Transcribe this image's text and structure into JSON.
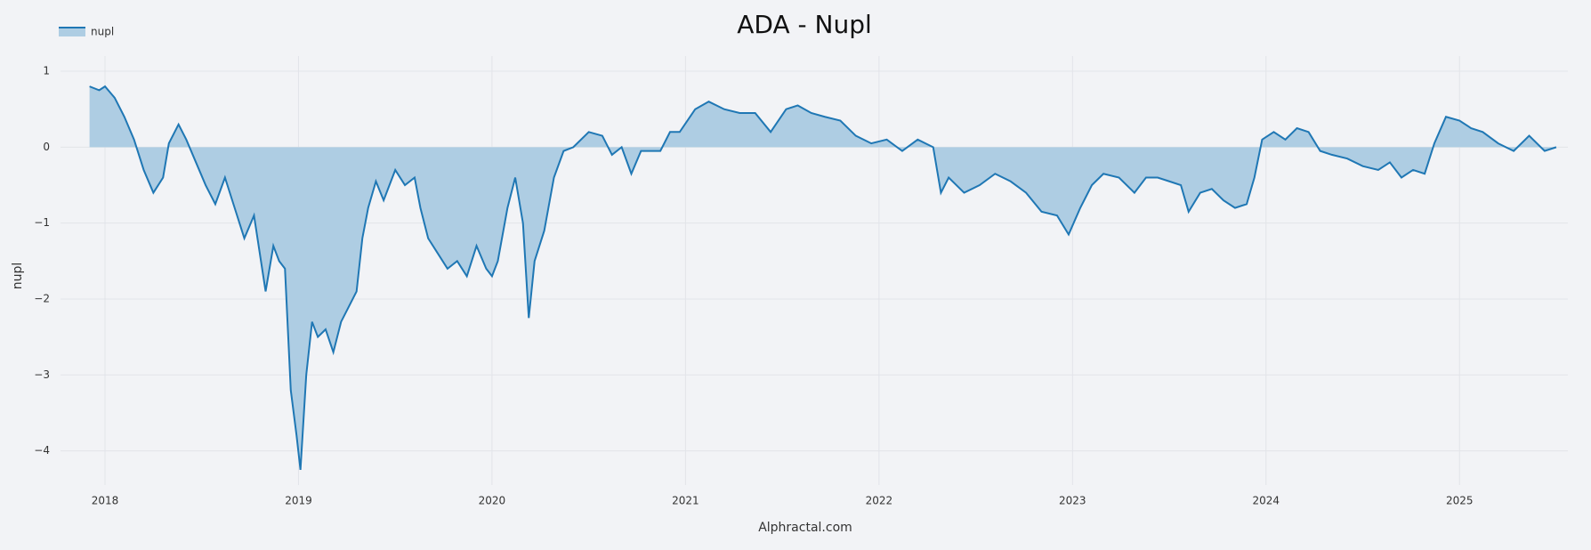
{
  "chart_data": {
    "type": "line",
    "title": "ADA - Nupl",
    "x_label": "Alphractal.com",
    "y_label": "nupl",
    "x": [
      2017.92,
      2017.97,
      2018.0,
      2018.05,
      2018.1,
      2018.15,
      2018.2,
      2018.25,
      2018.3,
      2018.33,
      2018.38,
      2018.42,
      2018.47,
      2018.52,
      2018.57,
      2018.62,
      2018.67,
      2018.72,
      2018.77,
      2018.8,
      2018.83,
      2018.87,
      2018.9,
      2018.93,
      2018.96,
      2018.99,
      2019.01,
      2019.04,
      2019.07,
      2019.1,
      2019.14,
      2019.18,
      2019.22,
      2019.26,
      2019.3,
      2019.33,
      2019.36,
      2019.4,
      2019.44,
      2019.47,
      2019.5,
      2019.55,
      2019.6,
      2019.63,
      2019.67,
      2019.72,
      2019.77,
      2019.82,
      2019.87,
      2019.92,
      2019.97,
      2020.0,
      2020.03,
      2020.08,
      2020.12,
      2020.16,
      2020.19,
      2020.22,
      2020.27,
      2020.32,
      2020.37,
      2020.42,
      2020.5,
      2020.57,
      2020.62,
      2020.67,
      2020.72,
      2020.77,
      2020.82,
      2020.87,
      2020.92,
      2020.97,
      2021.05,
      2021.12,
      2021.2,
      2021.28,
      2021.36,
      2021.44,
      2021.52,
      2021.58,
      2021.65,
      2021.72,
      2021.8,
      2021.88,
      2021.96,
      2022.04,
      2022.12,
      2022.2,
      2022.28,
      2022.32,
      2022.36,
      2022.44,
      2022.52,
      2022.6,
      2022.68,
      2022.76,
      2022.84,
      2022.92,
      2022.98,
      2023.04,
      2023.1,
      2023.16,
      2023.24,
      2023.32,
      2023.38,
      2023.44,
      2023.5,
      2023.56,
      2023.6,
      2023.66,
      2023.72,
      2023.78,
      2023.84,
      2023.9,
      2023.94,
      2023.98,
      2024.04,
      2024.1,
      2024.16,
      2024.22,
      2024.28,
      2024.34,
      2024.42,
      2024.5,
      2024.58,
      2024.64,
      2024.7,
      2024.76,
      2024.82,
      2024.87,
      2024.93,
      2025.0,
      2025.06,
      2025.12,
      2025.2,
      2025.28,
      2025.36,
      2025.44,
      2025.5
    ],
    "series": [
      {
        "name": "nupl",
        "color": "#1f77b4",
        "fill": "tozero",
        "fill_color": "#aecde3",
        "values": [
          0.8,
          0.75,
          0.8,
          0.65,
          0.4,
          0.1,
          -0.3,
          -0.6,
          -0.4,
          0.05,
          0.3,
          0.1,
          -0.2,
          -0.5,
          -0.75,
          -0.4,
          -0.8,
          -1.2,
          -0.9,
          -1.4,
          -1.9,
          -1.3,
          -1.5,
          -1.6,
          -3.2,
          -3.8,
          -4.25,
          -3.0,
          -2.3,
          -2.5,
          -2.4,
          -2.7,
          -2.3,
          -2.1,
          -1.9,
          -1.2,
          -0.8,
          -0.45,
          -0.7,
          -0.5,
          -0.3,
          -0.5,
          -0.4,
          -0.8,
          -1.2,
          -1.4,
          -1.6,
          -1.5,
          -1.7,
          -1.3,
          -1.6,
          -1.7,
          -1.5,
          -0.8,
          -0.4,
          -1.0,
          -2.25,
          -1.5,
          -1.1,
          -0.4,
          -0.05,
          0.0,
          0.2,
          0.15,
          -0.1,
          0.0,
          -0.35,
          -0.05,
          -0.05,
          -0.05,
          0.2,
          0.2,
          0.5,
          0.6,
          0.5,
          0.45,
          0.45,
          0.2,
          0.5,
          0.55,
          0.45,
          0.4,
          0.35,
          0.15,
          0.05,
          0.1,
          -0.05,
          0.1,
          0.0,
          -0.6,
          -0.4,
          -0.6,
          -0.5,
          -0.35,
          -0.45,
          -0.6,
          -0.85,
          -0.9,
          -1.15,
          -0.8,
          -0.5,
          -0.35,
          -0.4,
          -0.6,
          -0.4,
          -0.4,
          -0.45,
          -0.5,
          -0.85,
          -0.6,
          -0.55,
          -0.7,
          -0.8,
          -0.75,
          -0.4,
          0.1,
          0.2,
          0.1,
          0.25,
          0.2,
          -0.05,
          -0.1,
          -0.15,
          -0.25,
          -0.3,
          -0.2,
          -0.4,
          -0.3,
          -0.35,
          0.05,
          0.4,
          0.35,
          0.25,
          0.2,
          0.05,
          -0.05,
          0.15,
          -0.05,
          0.0
        ]
      }
    ],
    "xlim": [
      2017.77,
      2025.56
    ],
    "xticks": [
      2018,
      2019,
      2020,
      2021,
      2022,
      2023,
      2024,
      2025
    ],
    "ylim": [
      -4.45,
      1.2
    ],
    "yticks": [
      1,
      0,
      {
        "value": -1,
        "label": "−1"
      },
      {
        "value": -2,
        "label": "−2"
      },
      {
        "value": -3,
        "label": "−3"
      },
      {
        "value": -4,
        "label": "−4"
      }
    ],
    "grid": true,
    "legend": "top-left"
  }
}
